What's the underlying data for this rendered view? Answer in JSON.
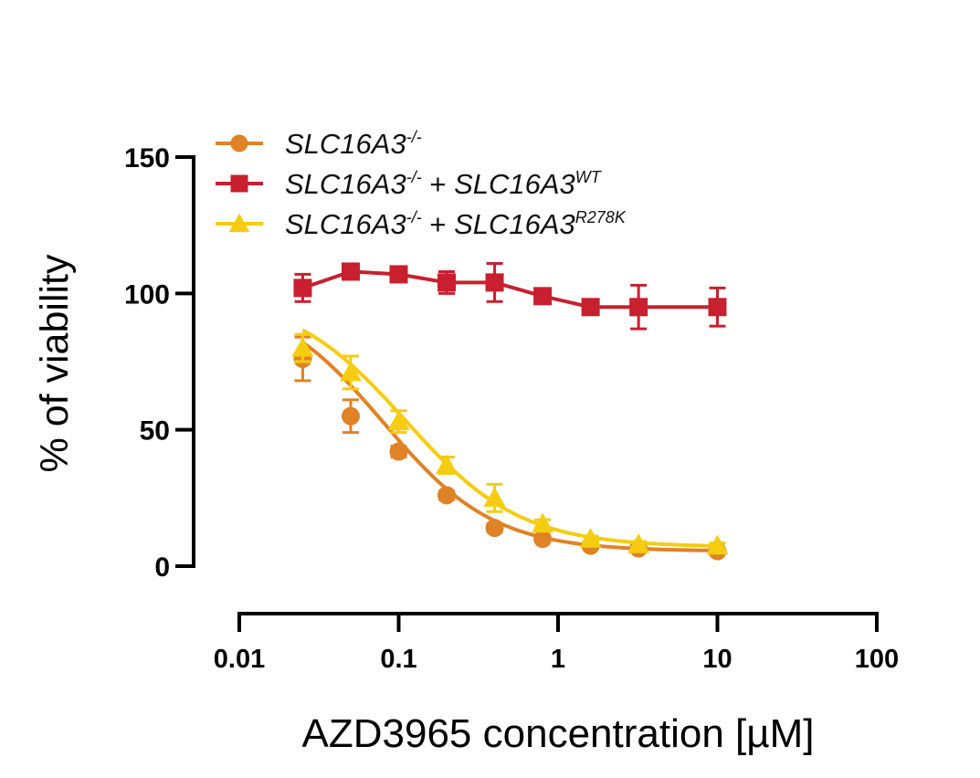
{
  "chart_data": {
    "type": "line",
    "title": "",
    "xlabel": "AZD3965 concentration [µM]",
    "ylabel": "% of viability",
    "xscale": "log",
    "xlim": [
      0.01,
      100
    ],
    "ylim": [
      0,
      150
    ],
    "x_ticks": [
      "0.01",
      "0.1",
      "1",
      "10",
      "100"
    ],
    "y_ticks": [
      "0",
      "50",
      "100",
      "150"
    ],
    "legend_position": "top-left",
    "x": [
      0.025,
      0.05,
      0.1,
      0.2,
      0.4,
      0.8,
      1.6,
      3.2,
      10
    ],
    "series": [
      {
        "name": "SLC16A3-/-",
        "legend": {
          "parts": [
            {
              "text": "SLC16A3"
            },
            {
              "text": "-/-",
              "sup": true
            }
          ]
        },
        "color": "#e08226",
        "marker": "circle",
        "values": [
          76,
          55,
          42,
          26,
          14,
          10,
          7.5,
          6.5,
          5.5
        ],
        "error": [
          8,
          6,
          2,
          1.5,
          1.5,
          1,
          1,
          1,
          1
        ],
        "fit": {
          "top": 100,
          "bottom": 5.5,
          "ec50": 0.08,
          "hill": 1.25
        }
      },
      {
        "name": "SLC16A3-/- + SLC16A3WT",
        "legend": {
          "parts": [
            {
              "text": "SLC16A3"
            },
            {
              "text": "-/-",
              "sup": true
            },
            {
              "text": " + ",
              "plain": true
            },
            {
              "text": "SLC16A3"
            },
            {
              "text": "WT",
              "sup": true
            }
          ]
        },
        "color": "#c8202e",
        "marker": "square",
        "values": [
          102,
          108,
          107,
          104,
          104,
          99,
          95,
          95,
          95
        ],
        "error": [
          5,
          2,
          2,
          4,
          7,
          2,
          2,
          8,
          7
        ]
      },
      {
        "name": "SLC16A3-/- + SLC16A3R278K",
        "legend": {
          "parts": [
            {
              "text": "SLC16A3"
            },
            {
              "text": "-/-",
              "sup": true
            },
            {
              "text": " + ",
              "plain": true
            },
            {
              "text": "SLC16A3"
            },
            {
              "text": "R278K",
              "sup": true
            }
          ]
        },
        "color": "#f5cc10",
        "marker": "triangle",
        "values": [
          80,
          71,
          53,
          37,
          25,
          15.5,
          10,
          8,
          7.5
        ],
        "error": [
          5,
          6,
          4,
          3,
          5,
          1.5,
          1,
          1,
          1
        ],
        "fit": {
          "top": 100,
          "bottom": 7,
          "ec50": 0.11,
          "hill": 1.2
        }
      }
    ]
  }
}
